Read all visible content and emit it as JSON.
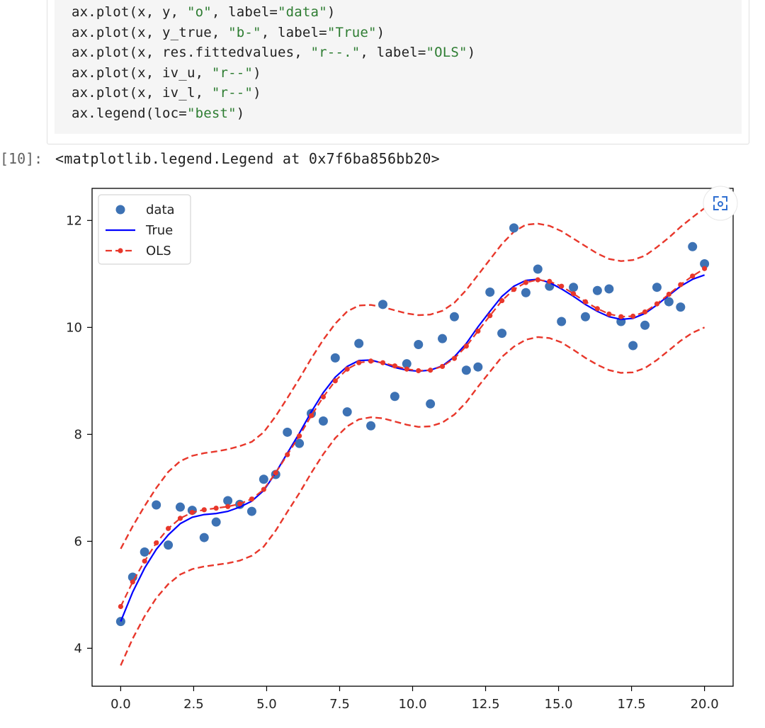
{
  "code_cell": {
    "lines": [
      {
        "pre": "ax.plot(x, y, ",
        "s1": "\"o\"",
        "mid": ", label=",
        "s2": "\"data\"",
        "post": ")"
      },
      {
        "pre": "ax.plot(x, y_true, ",
        "s1": "\"b-\"",
        "mid": ", label=",
        "s2": "\"True\"",
        "post": ")"
      },
      {
        "pre": "ax.plot(x, res.fittedvalues, ",
        "s1": "\"r--.\"",
        "mid": ", label=",
        "s2": "\"OLS\"",
        "post": ")"
      },
      {
        "pre": "ax.plot(x, iv_u, ",
        "s1": "\"r--\"",
        "mid": ")",
        "s2": "",
        "post": ""
      },
      {
        "pre": "ax.plot(x, iv_l, ",
        "s1": "\"r--\"",
        "mid": ")",
        "s2": "",
        "post": ""
      },
      {
        "pre": "ax.legend(loc=",
        "s1": "\"best\"",
        "mid": ")",
        "s2": "",
        "post": ""
      }
    ]
  },
  "output": {
    "prompt": "[10]:",
    "text": "<matplotlib.legend.Legend at 0x7f6ba856bb20>"
  },
  "figure_toolbar": {
    "icon": "camera-scan-icon"
  },
  "colors": {
    "data": "#3d72b4",
    "true": "#0000ff",
    "ols": "#e8372b",
    "string": "#2e7d32"
  },
  "chart_data": {
    "type": "scatter",
    "title": "",
    "xlabel": "",
    "ylabel": "",
    "xlim": [
      -0.98,
      20.98
    ],
    "ylim": [
      3.29,
      12.6
    ],
    "xticks": [
      "0.0",
      "2.5",
      "5.0",
      "7.5",
      "10.0",
      "12.5",
      "15.0",
      "17.5",
      "20.0"
    ],
    "yticks": [
      "4",
      "6",
      "8",
      "10",
      "12"
    ],
    "grid": false,
    "legend": {
      "placement": "top-left",
      "entries": [
        "data",
        "True",
        "OLS"
      ]
    },
    "series": [
      {
        "name": "data",
        "style": "points",
        "x": [
          0.0,
          0.41,
          0.82,
          1.22,
          1.63,
          2.04,
          2.45,
          2.86,
          3.27,
          3.67,
          4.08,
          4.49,
          4.9,
          5.31,
          5.71,
          6.12,
          6.53,
          6.94,
          7.35,
          7.76,
          8.16,
          8.57,
          8.98,
          9.39,
          9.8,
          10.2,
          10.61,
          11.02,
          11.43,
          11.84,
          12.24,
          12.65,
          13.06,
          13.47,
          13.88,
          14.29,
          14.69,
          15.1,
          15.51,
          15.92,
          16.33,
          16.73,
          17.14,
          17.55,
          17.96,
          18.37,
          18.78,
          19.18,
          19.59,
          20.0
        ],
        "y": [
          4.5,
          5.33,
          5.8,
          6.68,
          5.93,
          6.64,
          6.58,
          6.07,
          6.36,
          6.76,
          6.69,
          6.56,
          7.16,
          7.25,
          8.04,
          7.83,
          8.39,
          8.25,
          9.43,
          8.42,
          9.7,
          8.16,
          10.43,
          8.71,
          9.32,
          9.68,
          8.57,
          9.79,
          10.2,
          9.2,
          9.26,
          10.66,
          9.89,
          11.86,
          10.65,
          11.09,
          10.77,
          10.11,
          10.75,
          10.2,
          10.69,
          10.72,
          10.11,
          9.66,
          10.04,
          10.75,
          10.48,
          10.38,
          11.51,
          11.19
        ]
      },
      {
        "name": "True",
        "style": "solid",
        "x": [
          0.0,
          0.41,
          0.82,
          1.22,
          1.63,
          2.04,
          2.45,
          2.86,
          3.27,
          3.67,
          4.08,
          4.49,
          4.9,
          5.31,
          5.71,
          6.12,
          6.53,
          6.94,
          7.35,
          7.76,
          8.16,
          8.57,
          8.98,
          9.39,
          9.8,
          10.2,
          10.61,
          11.02,
          11.43,
          11.84,
          12.24,
          12.65,
          13.06,
          13.47,
          13.88,
          14.29,
          14.69,
          15.1,
          15.51,
          15.92,
          16.33,
          16.73,
          17.14,
          17.55,
          17.96,
          18.37,
          18.78,
          19.18,
          19.59,
          20.0
        ],
        "y": [
          4.5,
          5.05,
          5.5,
          5.85,
          6.12,
          6.33,
          6.45,
          6.5,
          6.52,
          6.56,
          6.64,
          6.75,
          6.95,
          7.28,
          7.65,
          8.02,
          8.42,
          8.78,
          9.07,
          9.27,
          9.38,
          9.39,
          9.33,
          9.25,
          9.2,
          9.18,
          9.2,
          9.28,
          9.45,
          9.7,
          10.01,
          10.3,
          10.58,
          10.77,
          10.88,
          10.9,
          10.84,
          10.72,
          10.58,
          10.43,
          10.3,
          10.2,
          10.15,
          10.17,
          10.26,
          10.42,
          10.6,
          10.77,
          10.9,
          10.98
        ]
      },
      {
        "name": "OLS",
        "style": "dashed-dotted",
        "x": [
          0.0,
          0.41,
          0.82,
          1.22,
          1.63,
          2.04,
          2.45,
          2.86,
          3.27,
          3.67,
          4.08,
          4.49,
          4.9,
          5.31,
          5.71,
          6.12,
          6.53,
          6.94,
          7.35,
          7.76,
          8.16,
          8.57,
          8.98,
          9.39,
          9.8,
          10.2,
          10.61,
          11.02,
          11.43,
          11.84,
          12.24,
          12.65,
          13.06,
          13.47,
          13.88,
          14.29,
          14.69,
          15.1,
          15.51,
          15.92,
          16.33,
          16.73,
          17.14,
          17.55,
          17.96,
          18.37,
          18.78,
          19.18,
          19.59,
          20.0
        ],
        "y": [
          4.78,
          5.24,
          5.63,
          5.97,
          6.24,
          6.43,
          6.54,
          6.59,
          6.62,
          6.65,
          6.7,
          6.79,
          6.97,
          7.28,
          7.62,
          7.97,
          8.35,
          8.7,
          9.0,
          9.22,
          9.34,
          9.37,
          9.34,
          9.28,
          9.22,
          9.19,
          9.2,
          9.27,
          9.42,
          9.65,
          9.93,
          10.22,
          10.5,
          10.71,
          10.84,
          10.89,
          10.86,
          10.77,
          10.63,
          10.48,
          10.35,
          10.25,
          10.2,
          10.21,
          10.29,
          10.44,
          10.62,
          10.8,
          10.96,
          11.1
        ]
      },
      {
        "name": "",
        "style": "dashed",
        "x": [
          0.0,
          0.41,
          0.82,
          1.22,
          1.63,
          2.04,
          2.45,
          2.86,
          3.27,
          3.67,
          4.08,
          4.49,
          4.9,
          5.31,
          5.71,
          6.12,
          6.53,
          6.94,
          7.35,
          7.76,
          8.16,
          8.57,
          8.98,
          9.39,
          9.8,
          10.2,
          10.61,
          11.02,
          11.43,
          11.84,
          12.24,
          12.65,
          13.06,
          13.47,
          13.88,
          14.29,
          14.69,
          15.1,
          15.51,
          15.92,
          16.33,
          16.73,
          17.14,
          17.55,
          17.96,
          18.37,
          18.78,
          19.18,
          19.59,
          20.0
        ],
        "y": [
          5.86,
          6.28,
          6.66,
          7.0,
          7.3,
          7.5,
          7.6,
          7.65,
          7.68,
          7.72,
          7.78,
          7.86,
          8.04,
          8.34,
          8.68,
          9.04,
          9.42,
          9.77,
          10.07,
          10.3,
          10.41,
          10.42,
          10.38,
          10.32,
          10.26,
          10.23,
          10.24,
          10.31,
          10.46,
          10.7,
          10.98,
          11.27,
          11.56,
          11.79,
          11.92,
          11.94,
          11.9,
          11.8,
          11.66,
          11.52,
          11.38,
          11.28,
          11.24,
          11.26,
          11.34,
          11.5,
          11.68,
          11.88,
          12.06,
          12.23
        ]
      },
      {
        "name": "",
        "style": "dashed",
        "x": [
          0.0,
          0.41,
          0.82,
          1.22,
          1.63,
          2.04,
          2.45,
          2.86,
          3.27,
          3.67,
          4.08,
          4.49,
          4.9,
          5.31,
          5.71,
          6.12,
          6.53,
          6.94,
          7.35,
          7.76,
          8.16,
          8.57,
          8.98,
          9.39,
          9.8,
          10.2,
          10.61,
          11.02,
          11.43,
          11.84,
          12.24,
          12.65,
          13.06,
          13.47,
          13.88,
          14.29,
          14.69,
          15.1,
          15.51,
          15.92,
          16.33,
          16.73,
          17.14,
          17.55,
          17.96,
          18.37,
          18.78,
          19.18,
          19.59,
          20.0
        ],
        "y": [
          3.68,
          4.18,
          4.6,
          4.94,
          5.2,
          5.38,
          5.48,
          5.53,
          5.56,
          5.59,
          5.64,
          5.73,
          5.9,
          6.2,
          6.55,
          6.9,
          7.28,
          7.63,
          7.93,
          8.15,
          8.28,
          8.32,
          8.3,
          8.24,
          8.18,
          8.14,
          8.15,
          8.22,
          8.37,
          8.6,
          8.89,
          9.17,
          9.45,
          9.64,
          9.77,
          9.82,
          9.8,
          9.72,
          9.58,
          9.43,
          9.3,
          9.2,
          9.15,
          9.16,
          9.24,
          9.39,
          9.57,
          9.75,
          9.9,
          10.0
        ]
      }
    ]
  }
}
